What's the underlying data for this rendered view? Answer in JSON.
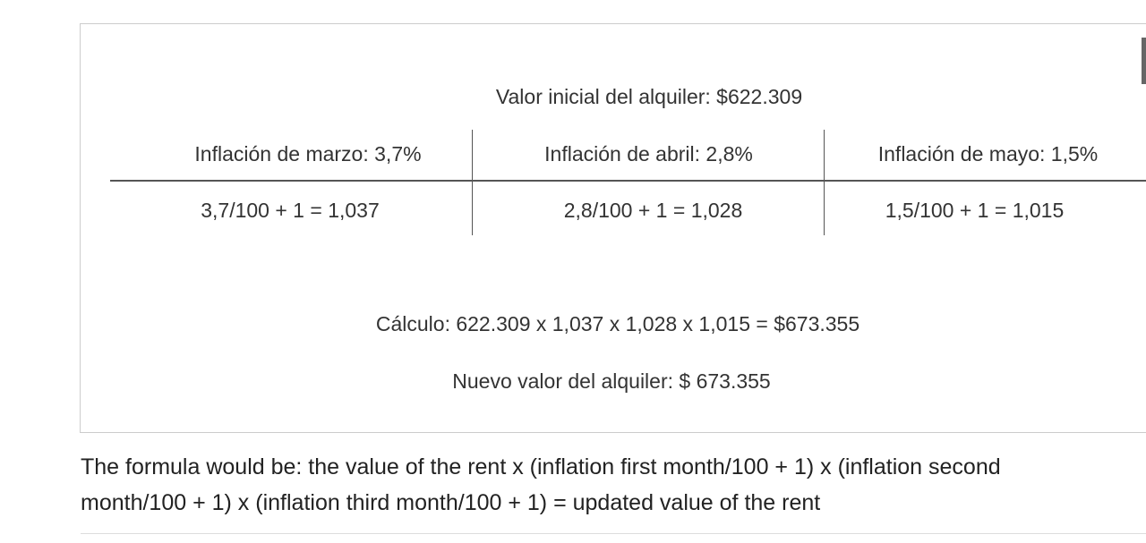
{
  "image": {
    "title": "Valor inicial del alquiler: $622.309",
    "table": {
      "headers": [
        "Inflación de marzo: 3,7%",
        "Inflación de abril: 2,8%",
        "Inflación de mayo: 1,5%"
      ],
      "rows": [
        [
          "3,7/100 + 1 = 1,037",
          "2,8/100 + 1 = 1,028",
          "1,5/100 + 1 = 1,015"
        ]
      ]
    },
    "calculation": "Cálculo: 622.309 x 1,037 x 1,028 x 1,015 = $673.355",
    "result": "Nuevo valor del alquiler: $ 673.355"
  },
  "caption": "The formula would be: the value of the rent x (inflation first month/100 + 1) x (inflation second month/100 + 1) x (inflation third month/100 + 1) = updated value of the rent"
}
